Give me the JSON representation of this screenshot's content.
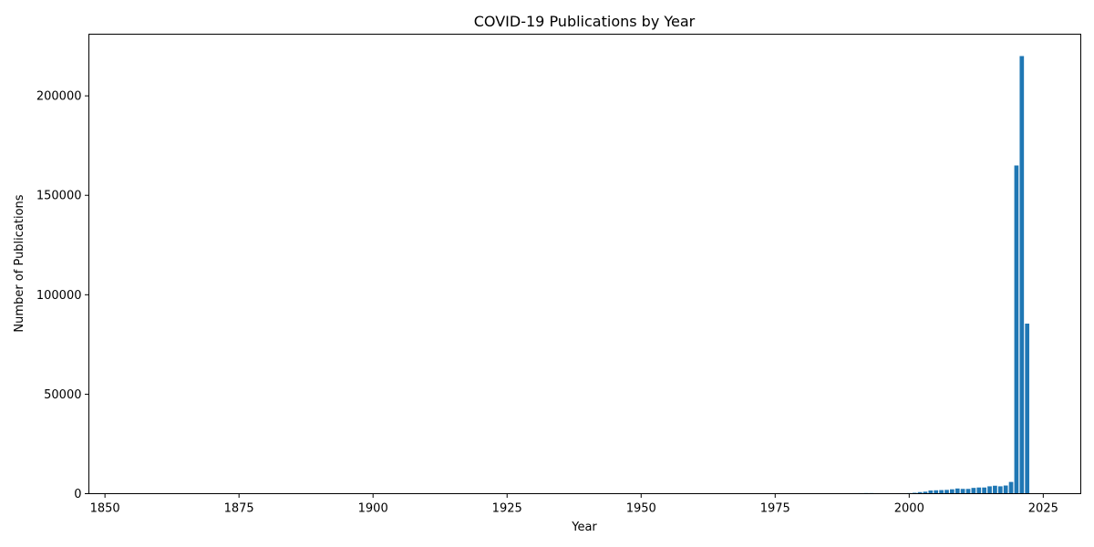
{
  "chart_data": {
    "type": "bar",
    "title": "COVID-19 Publications by Year",
    "xlabel": "Year",
    "ylabel": "Number of Publications",
    "xlim": [
      1847,
      2032
    ],
    "ylim": [
      0,
      231000
    ],
    "xticks": [
      1850,
      1875,
      1900,
      1925,
      1950,
      1975,
      2000,
      2025
    ],
    "yticks": [
      0,
      50000,
      100000,
      150000,
      200000
    ],
    "grid": false,
    "bar_color": "#1f77b4",
    "x": [
      1990,
      1991,
      1992,
      1993,
      1994,
      1997,
      1998,
      1999,
      2000,
      2001,
      2002,
      2003,
      2004,
      2005,
      2006,
      2007,
      2008,
      2009,
      2010,
      2011,
      2012,
      2013,
      2014,
      2015,
      2016,
      2017,
      2018,
      2019,
      2020,
      2021,
      2022
    ],
    "values": [
      200,
      250,
      300,
      300,
      250,
      200,
      250,
      250,
      300,
      450,
      800,
      1000,
      1600,
      1700,
      1800,
      1900,
      2200,
      2600,
      2400,
      2400,
      2900,
      3100,
      3100,
      3700,
      4000,
      3700,
      4100,
      5900,
      165000,
      220000,
      85500
    ]
  }
}
